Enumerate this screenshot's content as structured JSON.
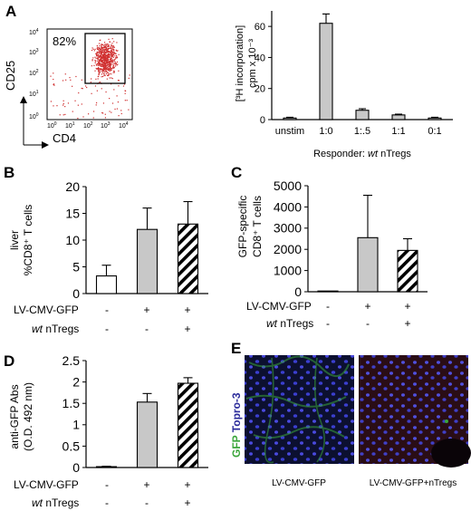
{
  "panels": {
    "A": {
      "letter": "A",
      "flow": {
        "percent": "82%",
        "x_label": "CD4",
        "y_label": "CD25",
        "ticks": [
          "10^0",
          "10^1",
          "10^2",
          "10^3",
          "10^4"
        ]
      }
    },
    "B": {
      "letter": "B"
    },
    "C": {
      "letter": "C"
    },
    "D": {
      "letter": "D"
    },
    "E": {
      "letter": "E",
      "stain_label_green": "GFP",
      "stain_label_blue": "Topro-3",
      "captions": [
        "LV-CMV-GFP",
        "LV-CMV-GFP+nTregs"
      ]
    }
  },
  "conditions": {
    "row1_label": "LV-CMV-GFP",
    "row2_italic": "wt",
    "row2_rest": " nTregs",
    "row1_signs": [
      "-",
      "+",
      "+"
    ],
    "row2_signs": [
      "-",
      "-",
      "+"
    ]
  },
  "colors": {
    "gray_bar": "#c8c8c8",
    "dot": "#d03030",
    "green": "#3aa53a",
    "blue": "#2a2a9a"
  },
  "chart_data": [
    {
      "panel": "A",
      "type": "bar",
      "categories": [
        "unstim",
        "1:0",
        "1:.5",
        "1:1",
        "0:1"
      ],
      "values": [
        1,
        62,
        6,
        3,
        1
      ],
      "errors": [
        0.5,
        6,
        1,
        0.5,
        0.5
      ],
      "fills": [
        "#c8c8c8",
        "#c8c8c8",
        "#c8c8c8",
        "#c8c8c8",
        "#c8c8c8"
      ],
      "ylim": [
        0,
        70
      ],
      "yticks": [
        0,
        20,
        40,
        60
      ],
      "ylabel_lines": [
        "[³H incorporation]",
        "cpm x 10⁻³"
      ],
      "xlabel_parts": [
        "Responder: ",
        "wt",
        " nTregs"
      ]
    },
    {
      "panel": "B",
      "type": "bar",
      "categories": [
        "",
        "",
        ""
      ],
      "values": [
        3.3,
        12,
        13
      ],
      "errors": [
        2,
        4,
        4.2
      ],
      "fills": [
        "white",
        "gray",
        "hatch"
      ],
      "ylim": [
        0,
        20
      ],
      "yticks": [
        0,
        5,
        10,
        15,
        20
      ],
      "ylabel_lines": [
        "liver",
        "%CD8⁺ T cells"
      ]
    },
    {
      "panel": "C",
      "type": "bar",
      "categories": [
        "",
        "",
        ""
      ],
      "values": [
        10,
        2550,
        1950
      ],
      "errors": [
        5,
        2000,
        550
      ],
      "fills": [
        "white",
        "gray",
        "hatch"
      ],
      "ylim": [
        0,
        5000
      ],
      "yticks": [
        0,
        1000,
        2000,
        3000,
        4000,
        5000
      ],
      "ylabel_lines": [
        "GFP-specific",
        "CD8⁺ T cells"
      ]
    },
    {
      "panel": "D",
      "type": "bar",
      "categories": [
        "",
        "",
        ""
      ],
      "values": [
        0.02,
        1.53,
        1.97
      ],
      "errors": [
        0.01,
        0.2,
        0.13
      ],
      "fills": [
        "white",
        "gray",
        "hatch"
      ],
      "ylim": [
        0,
        2.5
      ],
      "yticks": [
        0,
        0.5,
        1,
        1.5,
        2,
        2.5
      ],
      "ylabel_lines": [
        "anti-GFP Abs",
        "(O.D. 492 nm)"
      ]
    }
  ]
}
